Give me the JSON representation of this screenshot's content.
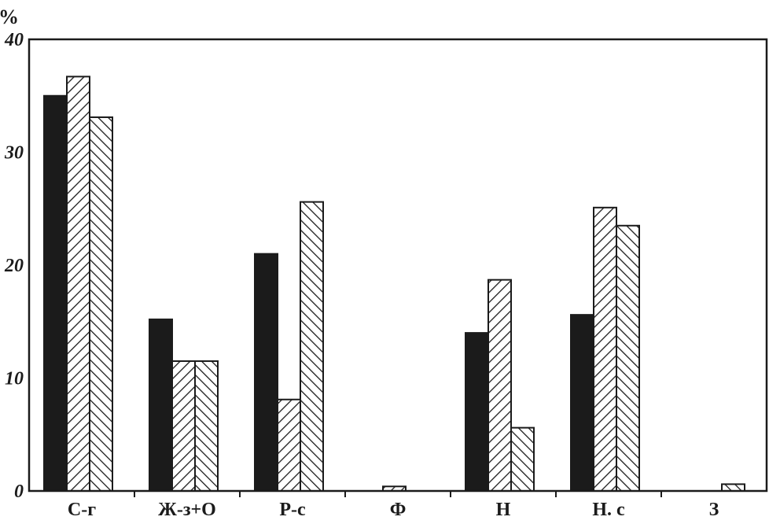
{
  "chart_data": {
    "type": "bar",
    "title": "",
    "xlabel": "",
    "ylabel": "%",
    "ylim": [
      0,
      40
    ],
    "yticks": [
      "0",
      "10",
      "20",
      "30",
      "40"
    ],
    "categories": [
      "С-г",
      "Ж-з+О",
      "Р-с",
      "Ф",
      "Н",
      "Н. с",
      "З"
    ],
    "series": [
      {
        "fill": "solid",
        "values": [
          35,
          15.2,
          21,
          0,
          14,
          15.6,
          0
        ]
      },
      {
        "fill": "hatch-right",
        "values": [
          36.7,
          11.5,
          8.1,
          0.4,
          18.7,
          25.1,
          0
        ]
      },
      {
        "fill": "hatch-left",
        "values": [
          33.1,
          11.5,
          25.6,
          0,
          5.6,
          23.5,
          0.6
        ]
      }
    ],
    "grid": false,
    "legend": "none",
    "colors": {
      "ink": "#1b1b1b",
      "background": "#ffffff"
    }
  }
}
